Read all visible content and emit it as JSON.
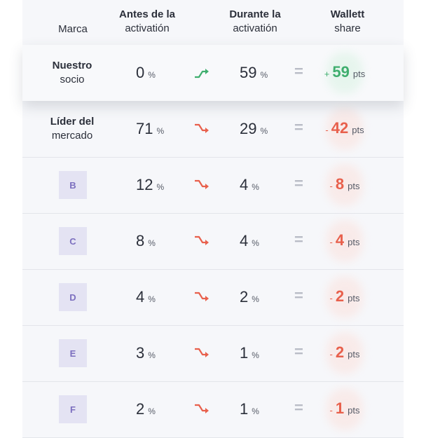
{
  "header": {
    "marca": "Marca",
    "antes_l1": "Antes de la",
    "antes_l2": "activatión",
    "durante_l1": "Durante la",
    "durante_l2": "activatión",
    "wallet_l1": "Wallett",
    "wallet_l2": "share"
  },
  "colors": {
    "up": "#3fae6e",
    "down": "#e8604c",
    "up_glow": "#d9f2e3",
    "down_glow": "#fbe1dc"
  },
  "rows": [
    {
      "brand_l1": "Nuestro",
      "brand_l2": "socio",
      "antes": "0",
      "antes_unit": "%",
      "trend": "up",
      "durante": "59",
      "durante_unit": "%",
      "eq": "=",
      "sign": "+",
      "wallet": "59",
      "wallet_unit": "pts"
    },
    {
      "brand_l1": "Líder del",
      "brand_l2": "mercado",
      "antes": "71",
      "antes_unit": "%",
      "trend": "down",
      "durante": "29",
      "durante_unit": "%",
      "eq": "=",
      "sign": "-",
      "wallet": "42",
      "wallet_unit": "pts"
    },
    {
      "brand_box": "B",
      "antes": "12",
      "antes_unit": "%",
      "trend": "down",
      "durante": "4",
      "durante_unit": "%",
      "eq": "=",
      "sign": "-",
      "wallet": "8",
      "wallet_unit": "pts"
    },
    {
      "brand_box": "C",
      "antes": "8",
      "antes_unit": "%",
      "trend": "down",
      "durante": "4",
      "durante_unit": "%",
      "eq": "=",
      "sign": "-",
      "wallet": "4",
      "wallet_unit": "pts"
    },
    {
      "brand_box": "D",
      "antes": "4",
      "antes_unit": "%",
      "trend": "down",
      "durante": "2",
      "durante_unit": "%",
      "eq": "=",
      "sign": "-",
      "wallet": "2",
      "wallet_unit": "pts"
    },
    {
      "brand_box": "E",
      "antes": "3",
      "antes_unit": "%",
      "trend": "down",
      "durante": "1",
      "durante_unit": "%",
      "eq": "=",
      "sign": "-",
      "wallet": "2",
      "wallet_unit": "pts"
    },
    {
      "brand_box": "F",
      "antes": "2",
      "antes_unit": "%",
      "trend": "down",
      "durante": "1",
      "durante_unit": "%",
      "eq": "=",
      "sign": "-",
      "wallet": "1",
      "wallet_unit": "pts"
    }
  ]
}
